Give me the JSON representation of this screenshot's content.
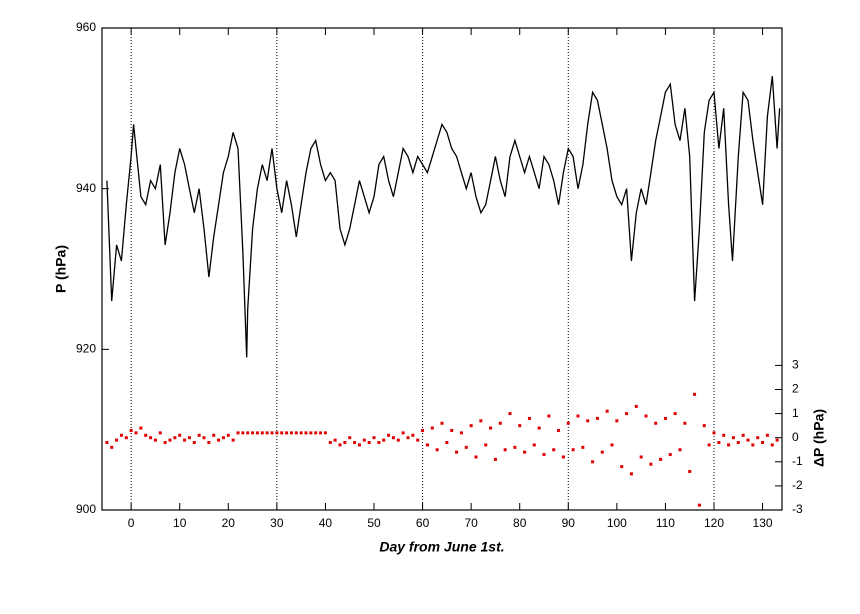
{
  "chart_data": {
    "type": "line",
    "xlabel": "Day  from  June  1st.",
    "ylabel": "P  (hPa)",
    "y2label": "ΔP  (hPa)",
    "xlim": [
      -6,
      134
    ],
    "xticks": [
      0,
      10,
      20,
      30,
      40,
      50,
      60,
      70,
      80,
      90,
      100,
      110,
      120,
      130
    ],
    "xgrid": [
      0,
      30,
      60,
      90,
      120
    ],
    "ylim": [
      900,
      960
    ],
    "yticks": [
      900,
      920,
      940,
      960
    ],
    "y2lim": [
      -3,
      17
    ],
    "y2ticks": [
      -3,
      -2,
      -1,
      0,
      1,
      2,
      3
    ],
    "series": [
      {
        "color": "#000000",
        "x": [
          -5,
          -4,
          -3,
          -2,
          -1,
          0,
          0.5,
          1,
          2,
          3,
          4,
          5,
          6,
          7,
          8,
          9,
          10,
          11,
          12,
          13,
          14,
          15,
          16,
          17,
          18,
          19,
          20,
          21,
          22,
          23,
          23.8,
          24,
          25,
          26,
          27,
          28,
          29,
          30,
          31,
          32,
          33,
          34,
          35,
          36,
          37,
          38,
          39,
          40,
          41,
          42,
          43,
          44,
          45,
          46,
          47,
          48,
          49,
          50,
          51,
          52,
          53,
          54,
          55,
          56,
          57,
          58,
          59,
          60,
          61,
          62,
          63,
          64,
          65,
          66,
          67,
          68,
          69,
          70,
          71,
          72,
          73,
          74,
          75,
          76,
          77,
          78,
          79,
          80,
          81,
          82,
          83,
          84,
          85,
          86,
          87,
          88,
          89,
          90,
          91,
          92,
          93,
          94,
          95,
          96,
          97,
          98,
          99,
          100,
          101,
          102,
          103,
          104,
          105,
          106,
          107,
          108,
          109,
          110,
          111,
          112,
          113,
          114,
          115,
          116,
          117,
          118,
          119,
          120,
          121,
          122,
          123,
          123.8,
          125,
          126,
          127,
          128,
          129,
          130,
          131,
          132,
          133,
          133.5
        ],
        "values": [
          941,
          926,
          933,
          931,
          938,
          944,
          948,
          945,
          939,
          938,
          941,
          940,
          943,
          933,
          937,
          942,
          945,
          943,
          940,
          937,
          940,
          935,
          929,
          934,
          938,
          942,
          944,
          947,
          945,
          932,
          919,
          925,
          935,
          940,
          943,
          941,
          945,
          940,
          937,
          941,
          938,
          934,
          938,
          942,
          945,
          946,
          943,
          941,
          942,
          941,
          935,
          933,
          935,
          938,
          941,
          939,
          937,
          939,
          943,
          944,
          941,
          939,
          942,
          945,
          944,
          942,
          944,
          943,
          942,
          944,
          946,
          948,
          947,
          945,
          944,
          942,
          940,
          942,
          939,
          937,
          938,
          941,
          944,
          941,
          939,
          944,
          946,
          944,
          942,
          944,
          942,
          940,
          944,
          943,
          941,
          938,
          942,
          945,
          944,
          940,
          943,
          948,
          952,
          951,
          948,
          945,
          941,
          939,
          938,
          940,
          931,
          937,
          940,
          938,
          942,
          946,
          949,
          952,
          953,
          948,
          946,
          950,
          944,
          926,
          935,
          947,
          951,
          952,
          945,
          950,
          938,
          931,
          944,
          952,
          951,
          946,
          942,
          938,
          949,
          954,
          945,
          950
        ]
      },
      {
        "color": "#e00000",
        "axis": "y2",
        "x": [
          -5,
          -4,
          -3,
          -2,
          -1,
          0,
          1,
          2,
          3,
          4,
          5,
          6,
          7,
          8,
          9,
          10,
          11,
          12,
          13,
          14,
          15,
          16,
          17,
          18,
          19,
          20,
          21,
          22,
          23,
          24,
          25,
          26,
          27,
          28,
          29,
          30,
          31,
          32,
          33,
          34,
          35,
          36,
          37,
          38,
          39,
          40,
          41,
          42,
          43,
          44,
          45,
          46,
          47,
          48,
          49,
          50,
          51,
          52,
          53,
          54,
          55,
          56,
          57,
          58,
          59,
          60,
          61,
          62,
          63,
          64,
          65,
          66,
          67,
          68,
          69,
          70,
          71,
          72,
          73,
          74,
          75,
          76,
          77,
          78,
          79,
          80,
          81,
          82,
          83,
          84,
          85,
          86,
          87,
          88,
          89,
          90,
          91,
          92,
          93,
          94,
          95,
          96,
          97,
          98,
          99,
          100,
          101,
          102,
          103,
          104,
          105,
          106,
          107,
          108,
          109,
          110,
          111,
          112,
          113,
          114,
          115,
          116,
          117,
          118,
          119,
          120,
          121,
          122,
          123,
          124,
          125,
          126,
          127,
          128,
          129,
          130,
          131,
          132,
          133
        ],
        "values": [
          -0.2,
          -0.4,
          -0.1,
          0.1,
          0.0,
          0.3,
          0.2,
          0.4,
          0.1,
          0.0,
          -0.1,
          0.2,
          -0.2,
          -0.1,
          0.0,
          0.1,
          -0.1,
          0.0,
          -0.2,
          0.1,
          0.0,
          -0.2,
          0.1,
          -0.1,
          0.0,
          0.1,
          -0.1,
          0.2,
          0.2,
          0.2,
          0.2,
          0.2,
          0.2,
          0.2,
          0.2,
          0.2,
          0.2,
          0.2,
          0.2,
          0.2,
          0.2,
          0.2,
          0.2,
          0.2,
          0.2,
          0.2,
          -0.2,
          -0.1,
          -0.3,
          -0.2,
          0.0,
          -0.2,
          -0.3,
          -0.1,
          -0.2,
          0.0,
          -0.2,
          -0.1,
          0.1,
          0.0,
          -0.1,
          0.2,
          0.0,
          0.1,
          -0.1,
          0.3,
          -0.3,
          0.4,
          -0.5,
          0.6,
          -0.2,
          0.3,
          -0.6,
          0.2,
          -0.4,
          0.5,
          -0.8,
          0.7,
          -0.3,
          0.4,
          -0.9,
          0.6,
          -0.5,
          1.0,
          -0.4,
          0.5,
          -0.6,
          0.8,
          -0.3,
          0.4,
          -0.7,
          0.9,
          -0.5,
          0.3,
          -0.8,
          0.6,
          -0.5,
          0.9,
          -0.4,
          0.7,
          -1.0,
          0.8,
          -0.6,
          1.1,
          -0.3,
          0.7,
          -1.2,
          1.0,
          -1.5,
          1.3,
          -0.8,
          0.9,
          -1.1,
          0.6,
          -0.9,
          0.8,
          -0.7,
          1.0,
          -0.5,
          0.6,
          -1.4,
          1.8,
          -2.8,
          0.5,
          -0.3,
          0.2,
          -0.2,
          0.1,
          -0.3,
          0.0,
          -0.2,
          0.1,
          -0.1,
          -0.3,
          0.0,
          -0.2,
          0.1,
          -0.3,
          -0.1
        ]
      }
    ]
  }
}
